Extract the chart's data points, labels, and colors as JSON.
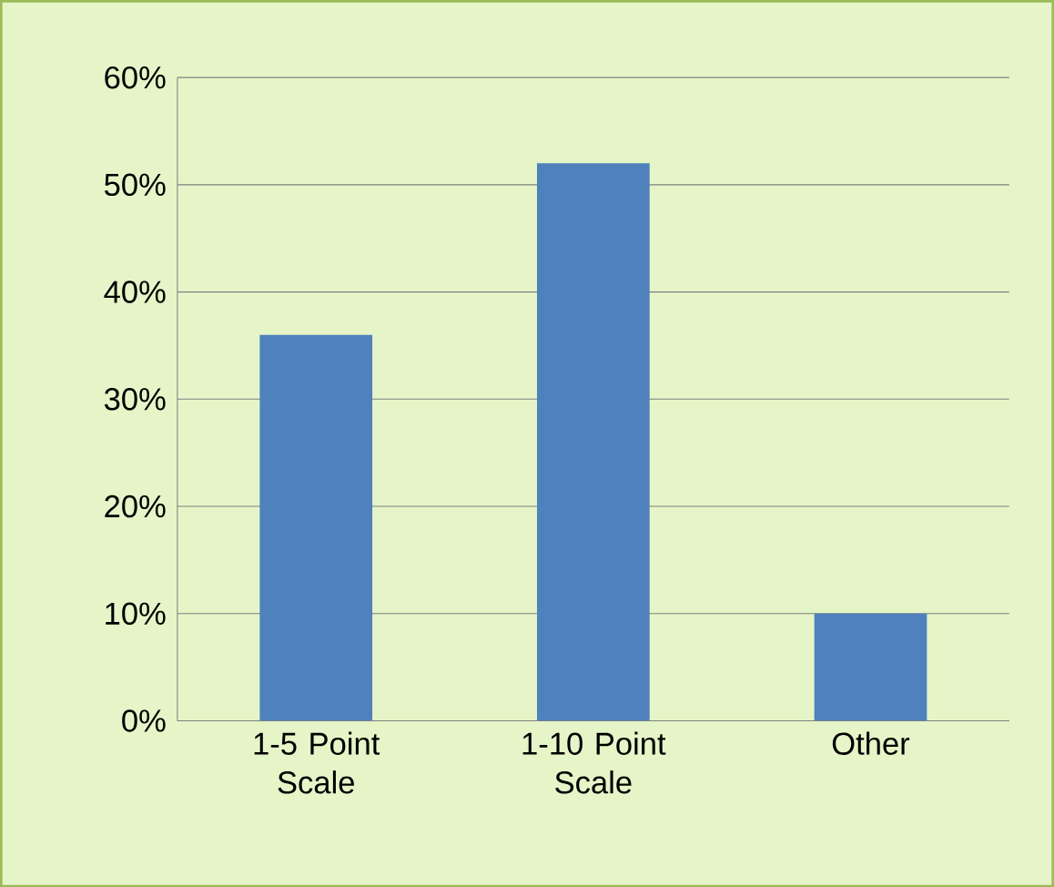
{
  "chart_data": {
    "type": "bar",
    "categories": [
      "1-5 Point Scale",
      "1-10 Point Scale",
      "Other"
    ],
    "values": [
      36,
      52,
      10
    ],
    "color": "#4f81bd",
    "ylim": [
      0,
      60
    ],
    "yticks": [
      {
        "value": 0,
        "label": "0%"
      },
      {
        "value": 10,
        "label": "10%"
      },
      {
        "value": 20,
        "label": "20%"
      },
      {
        "value": 30,
        "label": "30%"
      },
      {
        "value": 40,
        "label": "40%"
      },
      {
        "value": 50,
        "label": "50%"
      },
      {
        "value": 60,
        "label": "60%"
      }
    ],
    "grid": "y"
  }
}
